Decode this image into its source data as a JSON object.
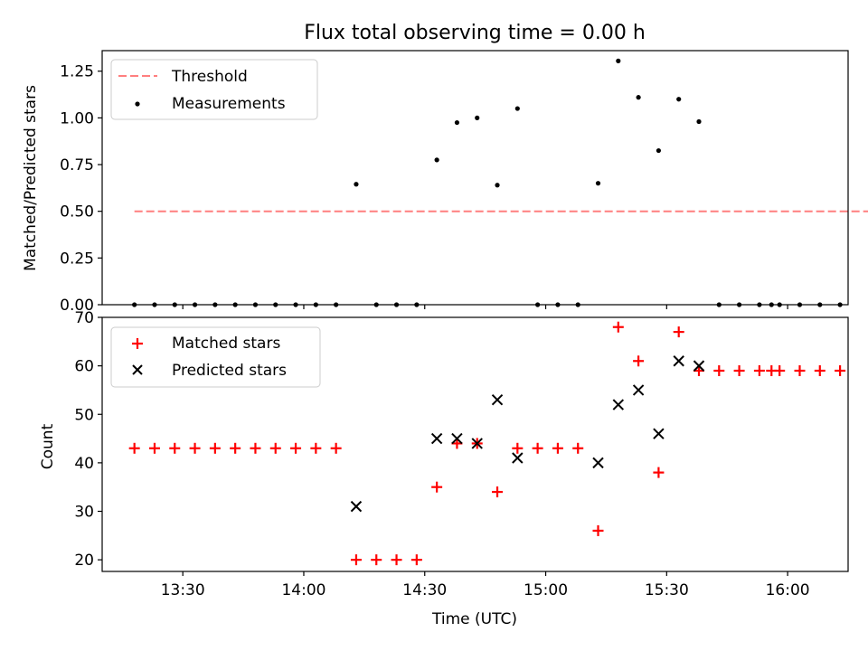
{
  "chart_data": [
    {
      "type": "scatter",
      "panel": "top",
      "title": "Flux total observing time = 0.00 h",
      "xlabel": "",
      "ylabel": "Matched/Predicted stars",
      "xlim_minutes": [
        790,
        975
      ],
      "ylim": [
        0,
        1.36
      ],
      "yticks": [
        0,
        0.25,
        0.5,
        0.75,
        1.0,
        1.25
      ],
      "ytick_labels": [
        "0.00",
        "0.25",
        "0.50",
        "0.75",
        "1.00",
        "1.25"
      ],
      "legend_position": "upper-left",
      "threshold": {
        "name": "Threshold",
        "value": 0.5,
        "x_range_minutes": [
          798,
          1068
        ],
        "color": "#ff7f7f",
        "style": "dashed"
      },
      "series": [
        {
          "name": "Measurements",
          "color": "#000000",
          "marker": "dot",
          "x_minutes": [
            798,
            803,
            808,
            813,
            818,
            823,
            828,
            833,
            838,
            843,
            848,
            853,
            858,
            863,
            868,
            873,
            878,
            883,
            888,
            893,
            898,
            903,
            908,
            913,
            918,
            923,
            928,
            933,
            938,
            943,
            948,
            953,
            956,
            958,
            963,
            968,
            973
          ],
          "values": [
            0,
            0,
            0,
            0,
            0,
            0,
            0,
            0,
            0,
            0,
            0,
            0.645,
            0,
            0,
            0,
            0.775,
            0.975,
            1.0,
            0.64,
            1.05,
            0,
            0,
            0,
            0.65,
            1.305,
            1.11,
            0.825,
            1.1,
            0.98,
            0,
            0,
            0,
            0,
            0,
            0,
            0,
            0
          ]
        }
      ]
    },
    {
      "type": "scatter",
      "panel": "bottom",
      "xlabel": "Time (UTC)",
      "ylabel": "Count",
      "xlim_minutes": [
        790,
        975
      ],
      "ylim": [
        17.6,
        70
      ],
      "yticks": [
        20,
        30,
        40,
        50,
        60,
        70
      ],
      "ytick_labels": [
        "20",
        "30",
        "40",
        "50",
        "60",
        "70"
      ],
      "xticks_minutes": [
        810,
        840,
        870,
        900,
        930,
        960
      ],
      "xtick_labels": [
        "13:30",
        "14:00",
        "14:30",
        "15:00",
        "15:30",
        "16:00"
      ],
      "legend_position": "upper-left",
      "series": [
        {
          "name": "Matched stars",
          "color": "#ff0000",
          "marker": "plus",
          "x_minutes": [
            798,
            803,
            808,
            813,
            818,
            823,
            828,
            833,
            838,
            843,
            848,
            853,
            858,
            863,
            868,
            873,
            878,
            883,
            888,
            893,
            898,
            903,
            908,
            913,
            918,
            923,
            928,
            933,
            938,
            943,
            948,
            953,
            956,
            958,
            963,
            968,
            973
          ],
          "values": [
            43,
            43,
            43,
            43,
            43,
            43,
            43,
            43,
            43,
            43,
            43,
            20,
            20,
            20,
            20,
            35,
            44,
            44,
            34,
            43,
            43,
            43,
            43,
            26,
            68,
            61,
            38,
            67,
            59,
            59,
            59,
            59,
            59,
            59,
            59,
            59,
            59
          ]
        },
        {
          "name": "Predicted stars",
          "color": "#000000",
          "marker": "x",
          "x_minutes": [
            853,
            873,
            878,
            883,
            888,
            893,
            913,
            918,
            923,
            928,
            933,
            938
          ],
          "values": [
            31,
            45,
            45,
            44,
            53,
            41,
            40,
            52,
            55,
            46,
            61,
            60
          ]
        }
      ]
    }
  ]
}
